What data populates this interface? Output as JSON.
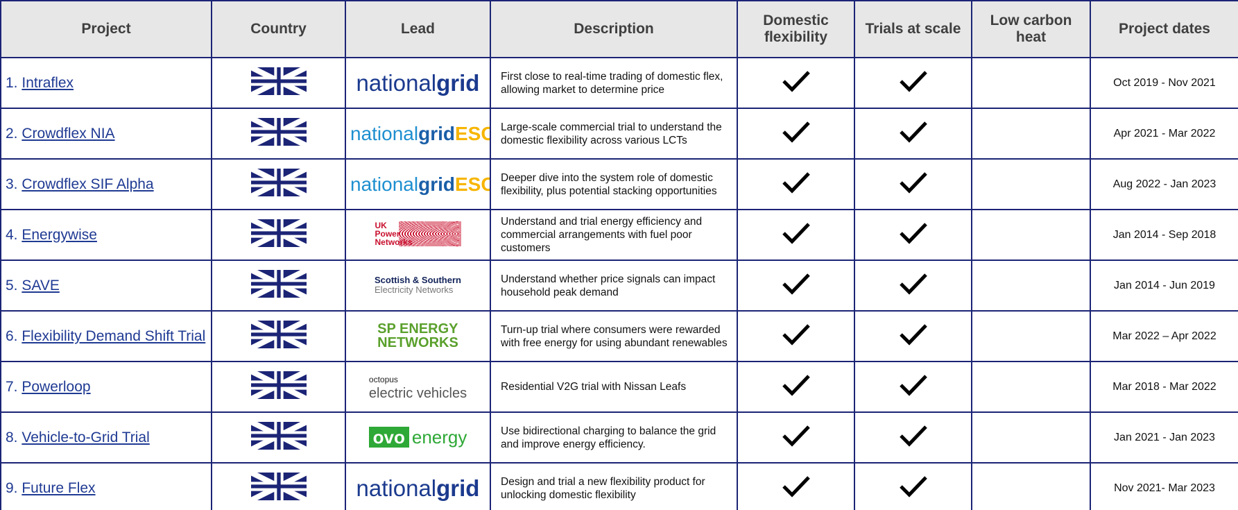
{
  "table": {
    "headers": [
      "Project",
      "Country",
      "Lead",
      "Description",
      "Domestic flexibility",
      "Trials at scale",
      "Low carbon heat",
      "Project dates"
    ],
    "rows": [
      {
        "number": "1.",
        "name": "Intraflex",
        "lead": {
          "style": "ng",
          "parts": [
            "national",
            "grid"
          ]
        },
        "description": "First close to real-time trading of domestic flex, allowing market to determine price",
        "domestic": true,
        "trials": true,
        "heat": false,
        "dates": "Oct 2019 - Nov 2021"
      },
      {
        "number": "2.",
        "name": "Crowdflex NIA",
        "lead": {
          "style": "eso",
          "parts": [
            "national",
            "grid",
            "ESO"
          ]
        },
        "description": "Large-scale commercial trial to understand the domestic flexibility across various LCTs",
        "domestic": true,
        "trials": true,
        "heat": false,
        "dates": "Apr 2021 - Mar 2022"
      },
      {
        "number": "3.",
        "name": "Crowdflex SIF Alpha",
        "lead": {
          "style": "eso",
          "parts": [
            "national",
            "grid",
            "ESO"
          ]
        },
        "description": "Deeper dive into the system role of domestic flexibility, plus potential stacking opportunities",
        "domestic": true,
        "trials": true,
        "heat": false,
        "dates": "Aug 2022 - Jan 2023"
      },
      {
        "number": "4.",
        "name": "Energywise",
        "lead": {
          "style": "ukpn",
          "parts": [
            "UK",
            "Power",
            "Networks"
          ]
        },
        "description": "Understand and trial energy efficiency and commercial arrangements with fuel poor customers",
        "domestic": true,
        "trials": true,
        "heat": false,
        "dates": "Jan 2014 - Sep 2018"
      },
      {
        "number": "5.",
        "name": "SAVE",
        "lead": {
          "style": "sse",
          "parts": [
            "Scottish & Southern",
            "Electricity Networks"
          ]
        },
        "description": "Understand whether price signals can impact household peak demand",
        "domestic": true,
        "trials": true,
        "heat": false,
        "dates": "Jan 2014 - Jun 2019"
      },
      {
        "number": "6.",
        "name": "Flexibility Demand Shift Trial",
        "lead": {
          "style": "sp",
          "parts": [
            "SP ENERGY",
            "NETWORKS"
          ]
        },
        "description": "Turn-up trial where consumers were rewarded with free energy for using abundant renewables",
        "domestic": true,
        "trials": true,
        "heat": false,
        "dates": "Mar 2022 – Apr 2022"
      },
      {
        "number": "7.",
        "name": "Powerloop",
        "lead": {
          "style": "oct",
          "parts": [
            "octopus",
            "electric vehicles"
          ]
        },
        "description": "Residential V2G trial with Nissan Leafs",
        "domestic": true,
        "trials": true,
        "heat": false,
        "dates": "Mar 2018 - Mar 2022"
      },
      {
        "number": "8.",
        "name": "Vehicle-to-Grid Trial",
        "lead": {
          "style": "ovo",
          "parts": [
            "ovo",
            "energy"
          ]
        },
        "description": "Use bidirectional charging to balance the grid and improve energy efficiency.",
        "domestic": true,
        "trials": true,
        "heat": false,
        "dates": "Jan 2021 - Jan 2023"
      },
      {
        "number": "9.",
        "name": "Future Flex",
        "lead": {
          "style": "ng",
          "parts": [
            "national",
            "grid"
          ]
        },
        "description": "Design and trial a new flexibility product for unlocking domestic flexibility",
        "domestic": true,
        "trials": true,
        "heat": false,
        "dates": "Nov 2021- Mar 2023"
      }
    ]
  }
}
